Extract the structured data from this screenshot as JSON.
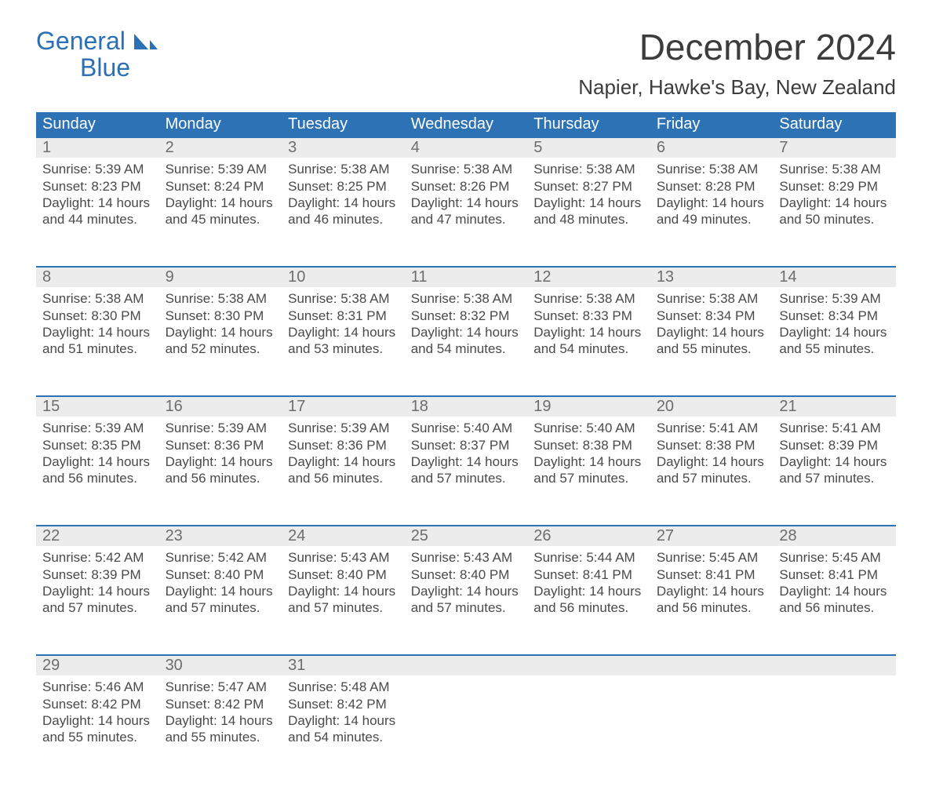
{
  "brand": {
    "name_line1": "General",
    "name_line2": "Blue",
    "brand_color": "#2b6fb5"
  },
  "header": {
    "month_title": "December 2024",
    "location": "Napier, Hawke's Bay, New Zealand"
  },
  "calendar": {
    "weekday_labels": [
      "Sunday",
      "Monday",
      "Tuesday",
      "Wednesday",
      "Thursday",
      "Friday",
      "Saturday"
    ],
    "header_bg": "#2e72b6",
    "header_fg": "#ffffff",
    "row_border_color": "#2e72b6",
    "date_row_bg": "#ececec",
    "day_number_color": "#6d6d6d",
    "body_text_color": "#4a4a4a",
    "weeks": [
      [
        {
          "day": "1",
          "sunrise": "Sunrise: 5:39 AM",
          "sunset": "Sunset: 8:23 PM",
          "daylight": "Daylight: 14 hours and 44 minutes."
        },
        {
          "day": "2",
          "sunrise": "Sunrise: 5:39 AM",
          "sunset": "Sunset: 8:24 PM",
          "daylight": "Daylight: 14 hours and 45 minutes."
        },
        {
          "day": "3",
          "sunrise": "Sunrise: 5:38 AM",
          "sunset": "Sunset: 8:25 PM",
          "daylight": "Daylight: 14 hours and 46 minutes."
        },
        {
          "day": "4",
          "sunrise": "Sunrise: 5:38 AM",
          "sunset": "Sunset: 8:26 PM",
          "daylight": "Daylight: 14 hours and 47 minutes."
        },
        {
          "day": "5",
          "sunrise": "Sunrise: 5:38 AM",
          "sunset": "Sunset: 8:27 PM",
          "daylight": "Daylight: 14 hours and 48 minutes."
        },
        {
          "day": "6",
          "sunrise": "Sunrise: 5:38 AM",
          "sunset": "Sunset: 8:28 PM",
          "daylight": "Daylight: 14 hours and 49 minutes."
        },
        {
          "day": "7",
          "sunrise": "Sunrise: 5:38 AM",
          "sunset": "Sunset: 8:29 PM",
          "daylight": "Daylight: 14 hours and 50 minutes."
        }
      ],
      [
        {
          "day": "8",
          "sunrise": "Sunrise: 5:38 AM",
          "sunset": "Sunset: 8:30 PM",
          "daylight": "Daylight: 14 hours and 51 minutes."
        },
        {
          "day": "9",
          "sunrise": "Sunrise: 5:38 AM",
          "sunset": "Sunset: 8:30 PM",
          "daylight": "Daylight: 14 hours and 52 minutes."
        },
        {
          "day": "10",
          "sunrise": "Sunrise: 5:38 AM",
          "sunset": "Sunset: 8:31 PM",
          "daylight": "Daylight: 14 hours and 53 minutes."
        },
        {
          "day": "11",
          "sunrise": "Sunrise: 5:38 AM",
          "sunset": "Sunset: 8:32 PM",
          "daylight": "Daylight: 14 hours and 54 minutes."
        },
        {
          "day": "12",
          "sunrise": "Sunrise: 5:38 AM",
          "sunset": "Sunset: 8:33 PM",
          "daylight": "Daylight: 14 hours and 54 minutes."
        },
        {
          "day": "13",
          "sunrise": "Sunrise: 5:38 AM",
          "sunset": "Sunset: 8:34 PM",
          "daylight": "Daylight: 14 hours and 55 minutes."
        },
        {
          "day": "14",
          "sunrise": "Sunrise: 5:39 AM",
          "sunset": "Sunset: 8:34 PM",
          "daylight": "Daylight: 14 hours and 55 minutes."
        }
      ],
      [
        {
          "day": "15",
          "sunrise": "Sunrise: 5:39 AM",
          "sunset": "Sunset: 8:35 PM",
          "daylight": "Daylight: 14 hours and 56 minutes."
        },
        {
          "day": "16",
          "sunrise": "Sunrise: 5:39 AM",
          "sunset": "Sunset: 8:36 PM",
          "daylight": "Daylight: 14 hours and 56 minutes."
        },
        {
          "day": "17",
          "sunrise": "Sunrise: 5:39 AM",
          "sunset": "Sunset: 8:36 PM",
          "daylight": "Daylight: 14 hours and 56 minutes."
        },
        {
          "day": "18",
          "sunrise": "Sunrise: 5:40 AM",
          "sunset": "Sunset: 8:37 PM",
          "daylight": "Daylight: 14 hours and 57 minutes."
        },
        {
          "day": "19",
          "sunrise": "Sunrise: 5:40 AM",
          "sunset": "Sunset: 8:38 PM",
          "daylight": "Daylight: 14 hours and 57 minutes."
        },
        {
          "day": "20",
          "sunrise": "Sunrise: 5:41 AM",
          "sunset": "Sunset: 8:38 PM",
          "daylight": "Daylight: 14 hours and 57 minutes."
        },
        {
          "day": "21",
          "sunrise": "Sunrise: 5:41 AM",
          "sunset": "Sunset: 8:39 PM",
          "daylight": "Daylight: 14 hours and 57 minutes."
        }
      ],
      [
        {
          "day": "22",
          "sunrise": "Sunrise: 5:42 AM",
          "sunset": "Sunset: 8:39 PM",
          "daylight": "Daylight: 14 hours and 57 minutes."
        },
        {
          "day": "23",
          "sunrise": "Sunrise: 5:42 AM",
          "sunset": "Sunset: 8:40 PM",
          "daylight": "Daylight: 14 hours and 57 minutes."
        },
        {
          "day": "24",
          "sunrise": "Sunrise: 5:43 AM",
          "sunset": "Sunset: 8:40 PM",
          "daylight": "Daylight: 14 hours and 57 minutes."
        },
        {
          "day": "25",
          "sunrise": "Sunrise: 5:43 AM",
          "sunset": "Sunset: 8:40 PM",
          "daylight": "Daylight: 14 hours and 57 minutes."
        },
        {
          "day": "26",
          "sunrise": "Sunrise: 5:44 AM",
          "sunset": "Sunset: 8:41 PM",
          "daylight": "Daylight: 14 hours and 56 minutes."
        },
        {
          "day": "27",
          "sunrise": "Sunrise: 5:45 AM",
          "sunset": "Sunset: 8:41 PM",
          "daylight": "Daylight: 14 hours and 56 minutes."
        },
        {
          "day": "28",
          "sunrise": "Sunrise: 5:45 AM",
          "sunset": "Sunset: 8:41 PM",
          "daylight": "Daylight: 14 hours and 56 minutes."
        }
      ],
      [
        {
          "day": "29",
          "sunrise": "Sunrise: 5:46 AM",
          "sunset": "Sunset: 8:42 PM",
          "daylight": "Daylight: 14 hours and 55 minutes."
        },
        {
          "day": "30",
          "sunrise": "Sunrise: 5:47 AM",
          "sunset": "Sunset: 8:42 PM",
          "daylight": "Daylight: 14 hours and 55 minutes."
        },
        {
          "day": "31",
          "sunrise": "Sunrise: 5:48 AM",
          "sunset": "Sunset: 8:42 PM",
          "daylight": "Daylight: 14 hours and 54 minutes."
        },
        null,
        null,
        null,
        null
      ]
    ]
  }
}
